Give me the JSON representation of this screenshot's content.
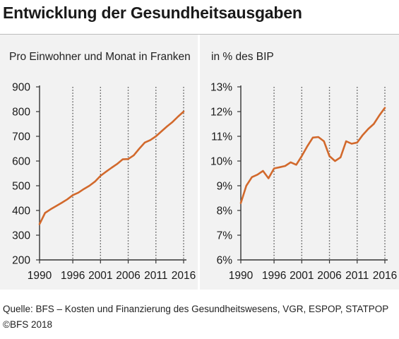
{
  "title": "Entwicklung der Gesundheitsausgaben",
  "source": "Quelle: BFS – Kosten und Finanzierung des Gesundheitswesens, VGR, ESPOP, STATPOP",
  "copyright": "©BFS 2018",
  "colors": {
    "line": "#d2692c",
    "panel_bg": "#f2f2f2",
    "grid": "#555555",
    "text": "#1a1a1a"
  },
  "chart_data": [
    {
      "type": "line",
      "title": "Pro Einwohner und Monat in Franken",
      "xlabel": "",
      "ylabel": "",
      "xlim": [
        1990,
        2016
      ],
      "ylim": [
        200,
        900
      ],
      "x_ticks": [
        1990,
        1996,
        2001,
        2006,
        2011,
        2016
      ],
      "x_tick_labels": [
        "1990",
        "1996",
        "2001",
        "2006",
        "2011",
        "2016"
      ],
      "y_ticks": [
        200,
        300,
        400,
        500,
        600,
        700,
        800,
        900
      ],
      "y_tick_labels": [
        "200",
        "300",
        "400",
        "500",
        "600",
        "700",
        "800",
        "900"
      ],
      "grid": "vertical dotted",
      "x": [
        1990,
        1991,
        1992,
        1993,
        1994,
        1995,
        1996,
        1997,
        1998,
        1999,
        2000,
        2001,
        2002,
        2003,
        2004,
        2005,
        2006,
        2007,
        2008,
        2009,
        2010,
        2011,
        2012,
        2013,
        2014,
        2015,
        2016
      ],
      "values": [
        345,
        390,
        405,
        418,
        431,
        445,
        462,
        472,
        487,
        500,
        517,
        540,
        557,
        573,
        588,
        607,
        608,
        623,
        650,
        675,
        685,
        700,
        720,
        740,
        758,
        780,
        800
      ]
    },
    {
      "type": "line",
      "title": "in % des BIP",
      "xlabel": "",
      "ylabel": "",
      "xlim": [
        1990,
        2016
      ],
      "ylim": [
        6,
        13
      ],
      "x_ticks": [
        1990,
        1996,
        2001,
        2006,
        2011,
        2016
      ],
      "x_tick_labels": [
        "1990",
        "1996",
        "2001",
        "2006",
        "2011",
        "2016"
      ],
      "y_ticks": [
        6,
        7,
        8,
        9,
        10,
        11,
        12,
        13
      ],
      "y_tick_labels": [
        "6%",
        "7%",
        "8%",
        "9%",
        "10%",
        "11%",
        "12%",
        "13%"
      ],
      "grid": "vertical dotted",
      "x": [
        1990,
        1991,
        1992,
        1993,
        1994,
        1995,
        1996,
        1997,
        1998,
        1999,
        2000,
        2001,
        2002,
        2003,
        2004,
        2005,
        2006,
        2007,
        2008,
        2009,
        2010,
        2011,
        2012,
        2013,
        2014,
        2015,
        2016
      ],
      "values": [
        8.3,
        9.0,
        9.35,
        9.45,
        9.6,
        9.3,
        9.7,
        9.75,
        9.8,
        9.95,
        9.85,
        10.2,
        10.6,
        10.95,
        10.97,
        10.8,
        10.2,
        10.0,
        10.15,
        10.8,
        10.7,
        10.75,
        11.05,
        11.3,
        11.5,
        11.85,
        12.15
      ]
    }
  ]
}
